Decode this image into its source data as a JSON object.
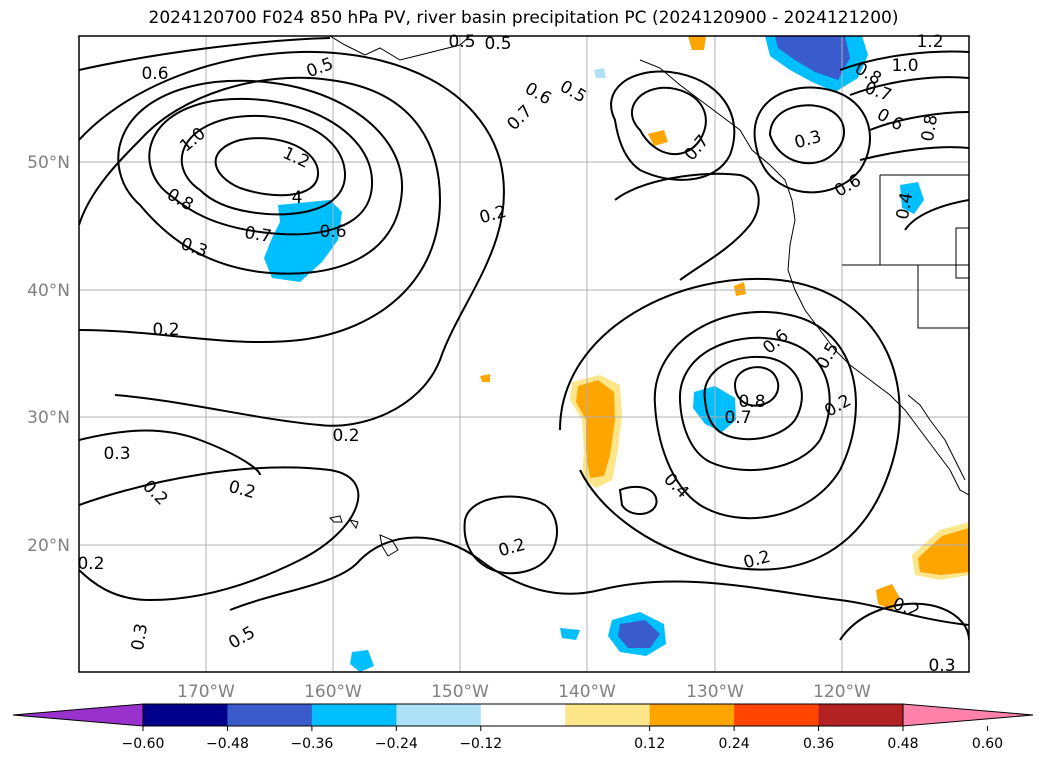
{
  "title": "2024120700 F024 850 hPa PV, river basin precipitation PC (2024120900 - 2024121200)",
  "map": {
    "lat_labels": [
      "50°N",
      "40°N",
      "30°N",
      "20°N"
    ],
    "lon_labels": [
      "170°W",
      "160°W",
      "150°W",
      "140°W",
      "130°W",
      "120°W"
    ],
    "contour_labels": [
      "0.6",
      "0.5",
      "0.5",
      "0.6",
      "0.5",
      "0.5",
      "1.2",
      "1.0",
      "0.8",
      "0.7",
      "0.6",
      "0.8",
      "1.0",
      "1.2",
      "4",
      "0.8",
      "0.7",
      "0.6",
      "0.3",
      "0.2",
      "0.2",
      "0.2",
      "0.7",
      "0.7",
      "0.3",
      "0.6",
      "0.4",
      "0.6",
      "0.5",
      "0.8",
      "0.7",
      "0.2",
      "0.4",
      "0.2",
      "0.3",
      "0.2",
      "0.2",
      "0.3",
      "0.5",
      "0.2",
      "0.2",
      "0.2",
      "0.3"
    ]
  },
  "colorbar": {
    "ticks": [
      "−0.60",
      "−0.48",
      "−0.36",
      "−0.24",
      "−0.12",
      "0.12",
      "0.24",
      "0.36",
      "0.48",
      "0.60"
    ],
    "colors": [
      "#9932cc",
      "#00008b",
      "#3a5bcc",
      "#00bfff",
      "#aee0f7",
      "#ffffff",
      "#fde68a",
      "#ffa500",
      "#ff4500",
      "#b22222",
      "#ff82ab"
    ]
  }
}
